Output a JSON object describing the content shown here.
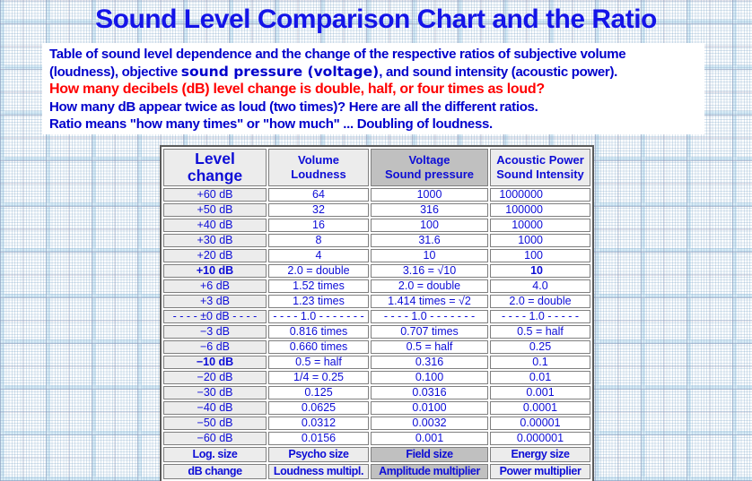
{
  "colors": {
    "title_blue": "#1414e8",
    "intro_blue": "#0000cc",
    "alert_red": "#ff0000",
    "table_text_blue": "#0d0dd6",
    "cell_light_gray": "#ececec",
    "cell_dark_gray": "#c0c0c0",
    "cell_border_gray": "#7f7f7f",
    "table_border_gray": "#5a5a5a"
  },
  "title": "Sound Level Comparison Chart and the Ratio",
  "intro": {
    "line1": "Table of sound level dependence and the change of the respective ratios of subjective volume",
    "line2_pre": "(loudness), objective ",
    "line2_emphasis": "sound pressure (voltage)",
    "line2_post": ", and sound intensity (acoustic power).",
    "question_red": "How many decibels (dB) level change is double, half, or four times as loud?",
    "line4": "How many dB appear twice as loud (two times)? Here are all the different ratios.",
    "line5": "Ratio means \"how many times\" or \"how much\" ... Doubling of loudness."
  },
  "table": {
    "headers": [
      "Level\nchange",
      "Volume\nLoudness",
      "Voltage\nSound pressure",
      "Acoustic Power\nSound Intensity"
    ],
    "rows": [
      {
        "cells": [
          "+60 dB",
          "64",
          "1000",
          "1000000"
        ],
        "styles": [
          "",
          "",
          "",
          "rc"
        ]
      },
      {
        "cells": [
          "+50 dB",
          "32",
          "316",
          "100000"
        ],
        "styles": [
          "",
          "",
          "",
          "rc"
        ]
      },
      {
        "cells": [
          "+40 dB",
          "16",
          "100",
          "10000"
        ],
        "styles": [
          "",
          "",
          "",
          "rc"
        ]
      },
      {
        "cells": [
          "+30 dB",
          "8",
          "31.6",
          "1000"
        ],
        "styles": [
          "",
          "",
          "",
          "rc"
        ]
      },
      {
        "cells": [
          "+20 dB",
          "4",
          "10",
          "100"
        ],
        "styles": [
          "",
          "",
          "",
          "rc"
        ]
      },
      {
        "cells": [
          "+10 dB",
          "2.0 = double",
          "3.16 = √10",
          "10"
        ],
        "styles": [
          "b",
          "",
          "",
          "b rc"
        ]
      },
      {
        "cells": [
          "+6 dB",
          "1.52 times",
          "2.0 = double",
          "4.0"
        ],
        "styles": [
          "",
          "",
          "",
          ""
        ]
      },
      {
        "cells": [
          "+3 dB",
          "1.23 times",
          "1.414 times = √2",
          "2.0 = double"
        ],
        "styles": [
          "",
          "",
          "",
          ""
        ]
      },
      {
        "cells": [
          "- - - - ±0 dB - - - -",
          "- - - - 1.0 - - - - - - -",
          "- - - - 1.0 - - - - - - -",
          "- - - - 1.0 - - - - -"
        ],
        "styles": [
          "",
          "",
          "",
          ""
        ]
      },
      {
        "cells": [
          "−3 dB",
          "0.816 times",
          "0.707 times",
          "0.5 = half"
        ],
        "styles": [
          "",
          "",
          "",
          ""
        ]
      },
      {
        "cells": [
          "−6 dB",
          "0.660 times",
          "0.5 = half",
          "0.25"
        ],
        "styles": [
          "",
          "",
          "",
          ""
        ]
      },
      {
        "cells": [
          "−10 dB",
          "0.5 = half",
          "0.316",
          "0.1"
        ],
        "styles": [
          "b",
          "",
          "",
          ""
        ]
      },
      {
        "cells": [
          "−20 dB",
          "1/4 = 0.25",
          "0.100",
          "0.01"
        ],
        "styles": [
          "",
          "",
          "",
          ""
        ]
      },
      {
        "cells": [
          "−30 dB",
          "0.125",
          "0.0316",
          "0.001"
        ],
        "styles": [
          "",
          "",
          "",
          ""
        ]
      },
      {
        "cells": [
          "−40 dB",
          "0.0625",
          "0.0100",
          "0.0001"
        ],
        "styles": [
          "",
          "",
          "",
          ""
        ]
      },
      {
        "cells": [
          "−50 dB",
          "0.0312",
          "0.0032",
          "0.00001"
        ],
        "styles": [
          "",
          "",
          "",
          ""
        ]
      },
      {
        "cells": [
          "−60 dB",
          "0.0156",
          "0.001",
          "0.000001"
        ],
        "styles": [
          "",
          "",
          "",
          ""
        ]
      }
    ],
    "footer_rows": [
      [
        "Log. size",
        "Psycho size",
        "Field size",
        "Energy size"
      ],
      [
        "dB change",
        "Loudness multipl.",
        "Amplitude multiplier",
        "Power multiplier"
      ]
    ]
  }
}
